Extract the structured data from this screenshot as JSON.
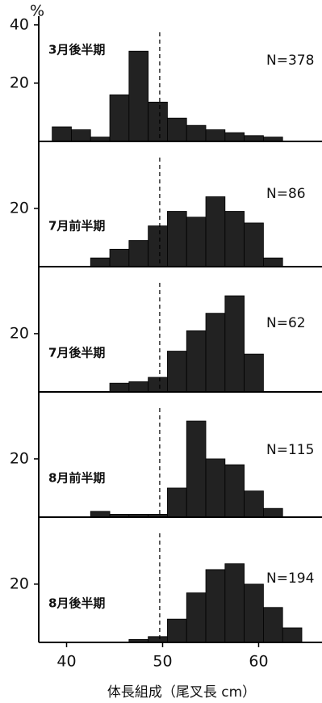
{
  "chart_data": [
    {
      "type": "histogram",
      "label": "3月後半期",
      "n_label": "N=378",
      "ylabel": "%",
      "bins": [
        38.5,
        40.5,
        42.5,
        44.5,
        46.5,
        48.5,
        50.5,
        52.5,
        54.5,
        56.5,
        58.5,
        60.5,
        62.5,
        64.5
      ],
      "values": [
        5,
        4,
        1.5,
        16,
        31,
        13.5,
        8,
        5.5,
        4,
        3,
        2,
        1.5,
        0
      ],
      "xlim": [
        37.1,
        66.6
      ],
      "ylim": [
        0,
        43
      ],
      "yticks": [
        20,
        40
      ],
      "vline": 49.7,
      "color": "#222222"
    },
    {
      "type": "histogram",
      "label": "7月前半期",
      "n_label": "N=86",
      "bins": [
        38.5,
        40.5,
        42.5,
        44.5,
        46.5,
        48.5,
        50.5,
        52.5,
        54.5,
        56.5,
        58.5,
        60.5,
        62.5,
        64.5
      ],
      "values": [
        0,
        0,
        3,
        6,
        9,
        14,
        19,
        17,
        24,
        19,
        15,
        3,
        0
      ],
      "xlim": [
        37.1,
        66.6
      ],
      "ylim": [
        0,
        43
      ],
      "yticks": [
        20
      ],
      "vline": 49.7,
      "color": "#222222"
    },
    {
      "type": "histogram",
      "label": "7月後半期",
      "n_label": "N=62",
      "bins": [
        38.5,
        40.5,
        42.5,
        44.5,
        46.5,
        48.5,
        50.5,
        52.5,
        54.5,
        56.5,
        58.5,
        60.5,
        62.5,
        64.5
      ],
      "values": [
        0,
        0,
        0,
        3,
        3.5,
        5,
        14,
        21,
        27,
        33,
        13,
        0,
        0
      ],
      "xlim": [
        37.1,
        66.6
      ],
      "ylim": [
        0,
        43
      ],
      "yticks": [
        20
      ],
      "vline": 49.7,
      "color": "#222222"
    },
    {
      "type": "histogram",
      "label": "8月前半期",
      "n_label": "N=115",
      "bins": [
        38.5,
        40.5,
        42.5,
        44.5,
        46.5,
        48.5,
        50.5,
        52.5,
        54.5,
        56.5,
        58.5,
        60.5,
        62.5,
        64.5
      ],
      "values": [
        0,
        0,
        2,
        1,
        1,
        1,
        10,
        33,
        20,
        18,
        9,
        3,
        0
      ],
      "xlim": [
        37.1,
        66.6
      ],
      "ylim": [
        0,
        43
      ],
      "yticks": [
        20
      ],
      "vline": 49.7,
      "color": "#222222"
    },
    {
      "type": "histogram",
      "label": "8月後半期",
      "n_label": "N=194",
      "xlabel": "体長組成（尾叉長 cm）",
      "bins": [
        38.5,
        40.5,
        42.5,
        44.5,
        46.5,
        48.5,
        50.5,
        52.5,
        54.5,
        56.5,
        58.5,
        60.5,
        62.5,
        64.5
      ],
      "values": [
        0,
        0,
        0,
        0,
        1,
        2,
        8,
        17,
        25,
        27,
        20,
        12,
        5
      ],
      "xlim": [
        37.1,
        66.6
      ],
      "ylim": [
        0,
        43
      ],
      "yticks": [
        20
      ],
      "xticks": [
        40,
        50,
        60
      ],
      "vline": 49.7,
      "color": "#222222"
    }
  ]
}
